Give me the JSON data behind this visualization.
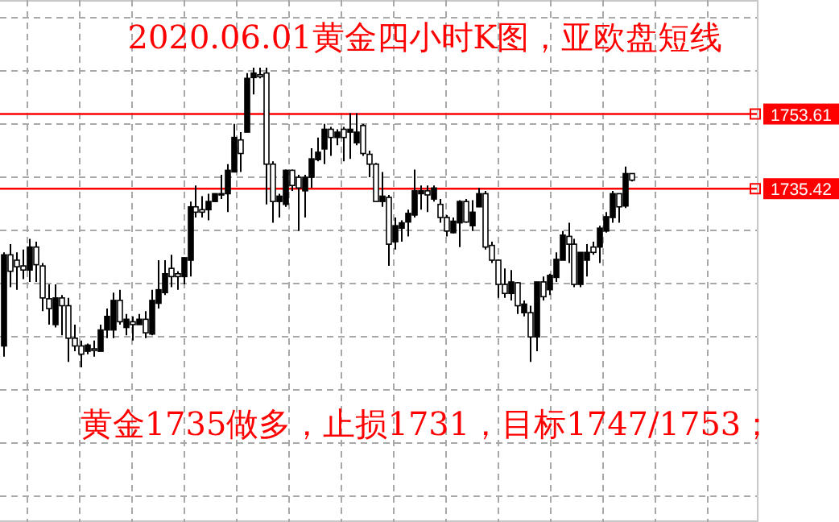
{
  "chart_data": {
    "type": "candlestick",
    "title": "2020.06.01黄金四小时K图，亚欧盘短线",
    "annotations": [
      "黄金1735做多，止损1731，目标1747/1753；"
    ],
    "categories": [
      null,
      null,
      null,
      null,
      null,
      null,
      null,
      null,
      null,
      null,
      null,
      null,
      null,
      null,
      null,
      null,
      null,
      null,
      null,
      null,
      null,
      null,
      null,
      null,
      null,
      null,
      null,
      null,
      null,
      null,
      null,
      null,
      null,
      null,
      null,
      null,
      null,
      null,
      null,
      null,
      null,
      null,
      null,
      null,
      null,
      null,
      null,
      null,
      null,
      null,
      null,
      null,
      null,
      null,
      null,
      null,
      null,
      null,
      null,
      null,
      null,
      null,
      null,
      null,
      null,
      null,
      null,
      null,
      null,
      null,
      null,
      null,
      null,
      null,
      null,
      null,
      null,
      null,
      null,
      null,
      null,
      null,
      null,
      null,
      null,
      null,
      null,
      null,
      null,
      null,
      null,
      null,
      null,
      null,
      null,
      null,
      null,
      null,
      null,
      null,
      null,
      null,
      null,
      null,
      null,
      null,
      null,
      null,
      null,
      null,
      null,
      null,
      null,
      null,
      null,
      null,
      null,
      null
    ],
    "ohlc": [
      [
        1697.1,
        1719.9,
        1694.5,
        1719.3
      ],
      [
        1719.3,
        1721.9,
        1711.4,
        1715.3
      ],
      [
        1718.0,
        1719.9,
        1710.8,
        1716.4
      ],
      [
        1716.6,
        1720.6,
        1713.4,
        1715.6
      ],
      [
        1715.6,
        1723.2,
        1712.7,
        1721.2
      ],
      [
        1721.2,
        1722.5,
        1712.7,
        1716.9
      ],
      [
        1716.6,
        1717.3,
        1705.6,
        1708.8
      ],
      [
        1708.6,
        1712.1,
        1702.3,
        1706.2
      ],
      [
        1702.3,
        1712.1,
        1701.6,
        1708.8
      ],
      [
        1708.8,
        1709.5,
        1699.7,
        1706.9
      ],
      [
        1706.9,
        1708.8,
        1693.2,
        1699.0
      ],
      [
        1699.0,
        1702.3,
        1695.8,
        1697.1
      ],
      [
        1697.1,
        1698.4,
        1691.9,
        1695.1
      ],
      [
        1695.8,
        1697.7,
        1695.1,
        1697.3
      ],
      [
        1696.4,
        1698.4,
        1694.5,
        1696.0
      ],
      [
        1695.8,
        1702.3,
        1695.8,
        1701.0
      ],
      [
        1701.0,
        1706.2,
        1699.0,
        1704.3
      ],
      [
        1701.0,
        1710.1,
        1699.0,
        1708.2
      ],
      [
        1708.2,
        1710.8,
        1702.3,
        1703.0
      ],
      [
        1701.6,
        1704.9,
        1699.7,
        1703.6
      ],
      [
        1703.0,
        1704.3,
        1698.4,
        1702.3
      ],
      [
        1702.3,
        1704.9,
        1702.3,
        1703.6
      ],
      [
        1703.6,
        1705.6,
        1699.0,
        1700.3
      ],
      [
        1700.0,
        1710.8,
        1699.7,
        1708.2
      ],
      [
        1707.5,
        1718.0,
        1706.2,
        1710.8
      ],
      [
        1710.1,
        1718.0,
        1709.5,
        1714.7
      ],
      [
        1716.0,
        1719.3,
        1711.4,
        1714.0
      ],
      [
        1714.7,
        1715.3,
        1710.8,
        1714.0
      ],
      [
        1714.0,
        1718.6,
        1712.1,
        1718.6
      ],
      [
        1718.0,
        1732.3,
        1714.0,
        1731.0
      ],
      [
        1731.0,
        1736.2,
        1728.4,
        1729.7
      ],
      [
        1730.3,
        1733.6,
        1728.4,
        1729.7
      ],
      [
        1730.3,
        1734.2,
        1727.7,
        1732.3
      ],
      [
        1732.3,
        1734.2,
        1732.3,
        1734.2
      ],
      [
        1734.2,
        1738.8,
        1732.9,
        1733.9
      ],
      [
        1734.2,
        1741.4,
        1729.7,
        1739.9
      ],
      [
        1739.5,
        1751.2,
        1739.5,
        1747.9
      ],
      [
        1747.3,
        1749.2,
        1739.5,
        1744.0
      ],
      [
        1749.2,
        1763.6,
        1749.2,
        1762.3
      ],
      [
        1762.5,
        1764.9,
        1758.4,
        1763.6
      ],
      [
        1763.2,
        1764.9,
        1762.3,
        1762.7
      ],
      [
        1763.6,
        1764.9,
        1731.6,
        1741.4
      ],
      [
        1741.4,
        1742.1,
        1727.1,
        1732.3
      ],
      [
        1732.3,
        1734.2,
        1728.4,
        1733.6
      ],
      [
        1731.6,
        1740.1,
        1731.0,
        1739.9
      ],
      [
        1739.9,
        1740.1,
        1734.9,
        1736.2
      ],
      [
        1738.2,
        1738.8,
        1725.1,
        1735.6
      ],
      [
        1734.9,
        1738.8,
        1728.4,
        1738.2
      ],
      [
        1738.2,
        1745.3,
        1735.6,
        1742.7
      ],
      [
        1742.5,
        1747.9,
        1742.1,
        1744.3
      ],
      [
        1745.1,
        1751.2,
        1741.4,
        1749.9
      ],
      [
        1749.9,
        1750.5,
        1743.4,
        1747.9
      ],
      [
        1747.9,
        1749.9,
        1746.0,
        1749.2
      ],
      [
        1749.9,
        1750.5,
        1742.1,
        1747.9
      ],
      [
        1749.2,
        1753.8,
        1742.7,
        1749.9
      ],
      [
        1746.6,
        1753.8,
        1746.0,
        1749.2
      ],
      [
        1750.8,
        1751.2,
        1743.4,
        1744.0
      ],
      [
        1743.8,
        1744.7,
        1738.2,
        1741.4
      ],
      [
        1741.4,
        1741.7,
        1732.3,
        1732.3
      ],
      [
        1732.3,
        1739.5,
        1731.0,
        1733.6
      ],
      [
        1733.3,
        1733.9,
        1716.6,
        1721.9
      ],
      [
        1722.5,
        1728.4,
        1720.6,
        1726.4
      ],
      [
        1725.8,
        1727.7,
        1722.5,
        1727.1
      ],
      [
        1727.3,
        1730.3,
        1723.8,
        1729.4
      ],
      [
        1729.0,
        1740.1,
        1728.4,
        1734.9
      ],
      [
        1734.2,
        1736.2,
        1730.3,
        1734.9
      ],
      [
        1734.9,
        1736.2,
        1729.7,
        1733.9
      ],
      [
        1732.9,
        1736.2,
        1732.3,
        1735.6
      ],
      [
        1731.6,
        1732.9,
        1727.1,
        1728.4
      ],
      [
        1728.4,
        1729.0,
        1723.8,
        1725.1
      ],
      [
        1724.7,
        1728.4,
        1724.5,
        1727.5
      ],
      [
        1727.1,
        1732.6,
        1721.2,
        1732.3
      ],
      [
        1732.3,
        1732.9,
        1727.1,
        1727.3
      ],
      [
        1726.4,
        1732.6,
        1725.1,
        1729.7
      ],
      [
        1731.0,
        1735.6,
        1731.0,
        1734.2
      ],
      [
        1734.2,
        1734.9,
        1720.6,
        1721.2
      ],
      [
        1721.6,
        1722.5,
        1717.3,
        1718.0
      ],
      [
        1718.0,
        1718.2,
        1708.8,
        1712.1
      ],
      [
        1712.1,
        1716.0,
        1708.8,
        1709.9
      ],
      [
        1709.9,
        1715.6,
        1708.2,
        1712.7
      ],
      [
        1712.5,
        1712.7,
        1704.9,
        1706.9
      ],
      [
        1705.2,
        1708.2,
        1704.3,
        1707.3
      ],
      [
        1705.2,
        1706.9,
        1693.2,
        1699.3
      ],
      [
        1699.3,
        1712.7,
        1695.8,
        1712.7
      ],
      [
        1712.7,
        1714.0,
        1708.2,
        1709.1
      ],
      [
        1710.8,
        1714.7,
        1709.5,
        1714.3
      ],
      [
        1713.8,
        1719.9,
        1712.7,
        1718.2
      ],
      [
        1718.0,
        1725.1,
        1718.0,
        1724.1
      ],
      [
        1723.8,
        1727.1,
        1717.3,
        1721.9
      ],
      [
        1721.9,
        1723.2,
        1711.4,
        1712.1
      ],
      [
        1712.1,
        1719.9,
        1711.4,
        1719.9
      ],
      [
        1718.0,
        1721.9,
        1714.0,
        1719.9
      ],
      [
        1721.2,
        1722.5,
        1719.3,
        1719.9
      ],
      [
        1721.2,
        1726.4,
        1717.3,
        1725.8
      ],
      [
        1725.1,
        1729.7,
        1724.7,
        1728.6
      ],
      [
        1728.4,
        1734.9,
        1727.1,
        1734.2
      ],
      [
        1734.2,
        1734.2,
        1727.1,
        1731.0
      ],
      [
        1731.2,
        1740.8,
        1730.7,
        1739.1
      ],
      [
        1739.1,
        1739.1,
        1737.2,
        1737.5
      ],
      null,
      null,
      null,
      null,
      null,
      null,
      null,
      null,
      null,
      null,
      null,
      null,
      null,
      null,
      null,
      null,
      null,
      null,
      null
    ],
    "grid": true,
    "ylim": [
      1654.4,
      1781.2
    ],
    "yticks": [
      1735.42,
      1753.61
    ],
    "tick_labels": "y",
    "ref_lines": [
      {
        "axis": "y",
        "value": 1753.61,
        "color": "#ff0000"
      },
      {
        "axis": "y",
        "value": 1735.42,
        "color": "#ff0000"
      }
    ]
  }
}
